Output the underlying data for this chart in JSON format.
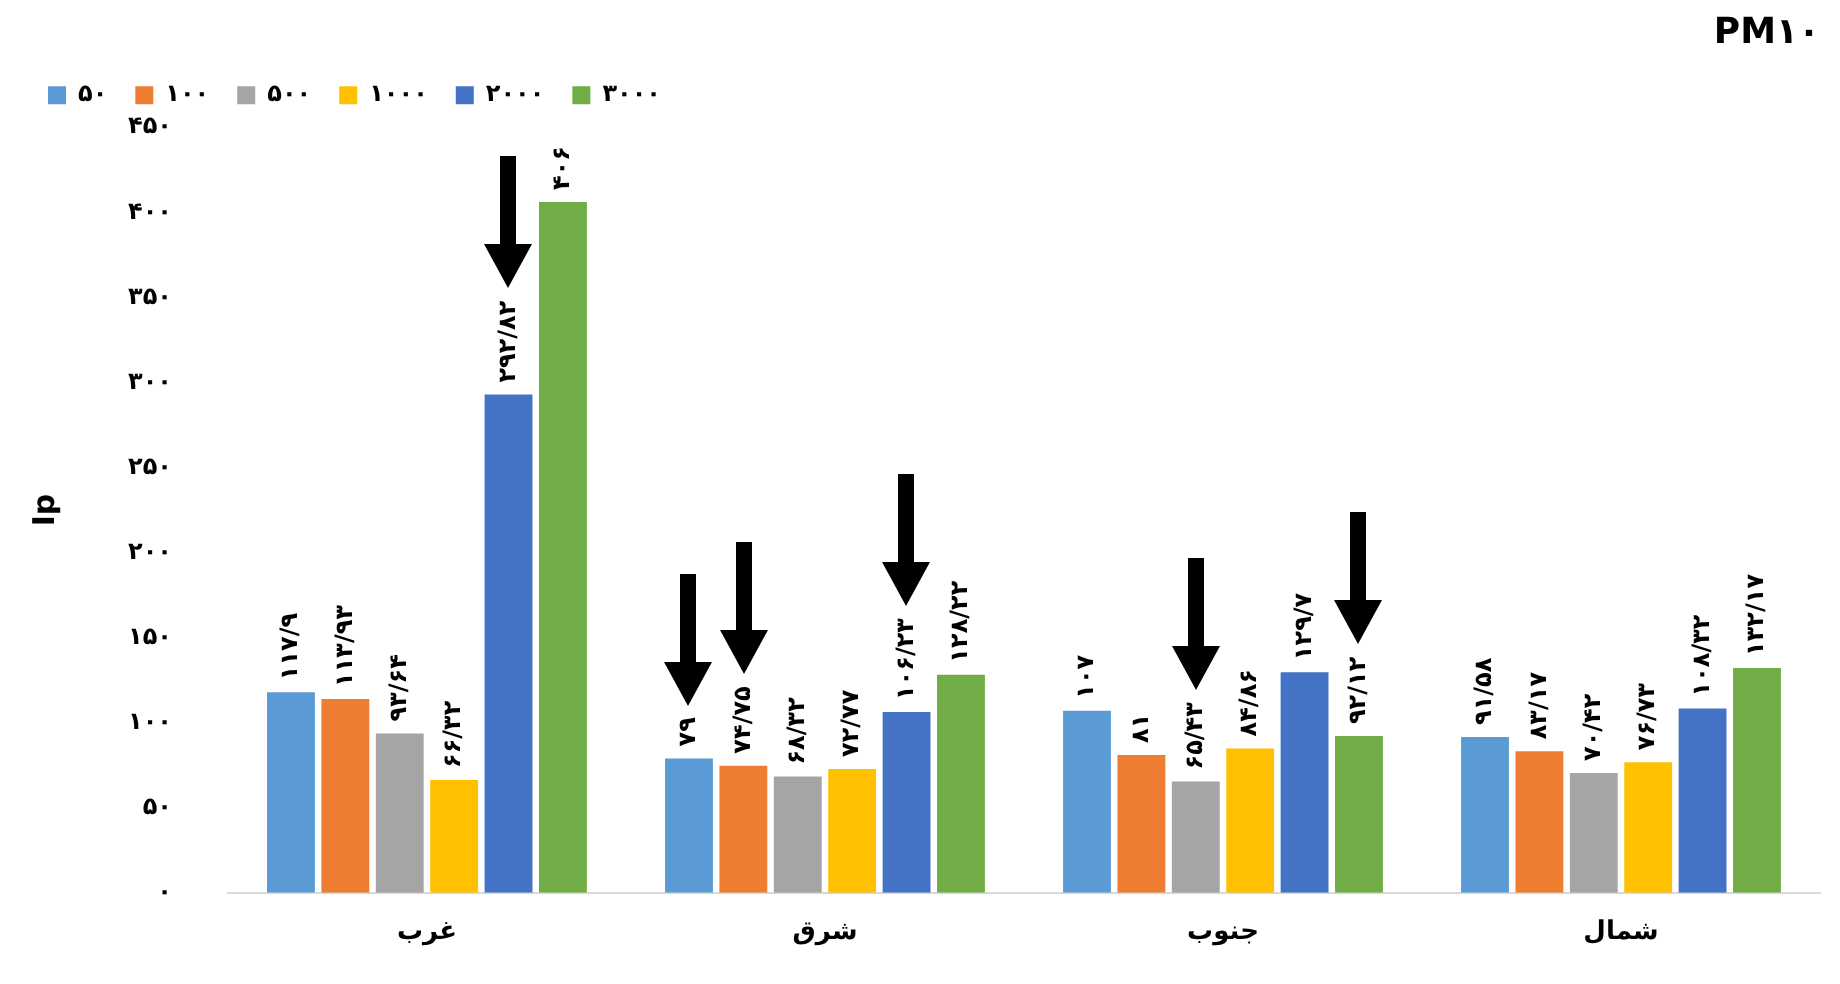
{
  "chart_data": {
    "type": "bar",
    "title": "PM۱۰",
    "ylabel": "Ip",
    "categories": [
      "غرب",
      "شرق",
      "جنوب",
      "شمال"
    ],
    "series": [
      {
        "name": "۵۰",
        "color": "#5b9bd5",
        "values": [
          117.9,
          79,
          107,
          91.58
        ],
        "value_labels": [
          "۱۱۷/۹",
          "۷۹",
          "۱۰۷",
          "۹۱/۵۸"
        ]
      },
      {
        "name": "۱۰۰",
        "color": "#ed7d31",
        "values": [
          113.93,
          74.75,
          81,
          83.17
        ],
        "value_labels": [
          "۱۱۳/۹۳",
          "۷۴/۷۵",
          "۸۱",
          "۸۳/۱۷"
        ]
      },
      {
        "name": "۵۰۰",
        "color": "#a5a5a5",
        "values": [
          93.64,
          68.32,
          65.43,
          70.42
        ],
        "value_labels": [
          "۹۳/۶۴",
          "۶۸/۳۲",
          "۶۵/۴۳",
          "۷۰/۴۲"
        ]
      },
      {
        "name": "۱۰۰۰",
        "color": "#ffc000",
        "values": [
          66.32,
          72.77,
          84.86,
          76.73
        ],
        "value_labels": [
          "۶۶/۳۲",
          "۷۲/۷۷",
          "۸۴/۸۶",
          "۷۶/۷۳"
        ]
      },
      {
        "name": "۲۰۰۰",
        "color": "#4472c4",
        "values": [
          292.82,
          106.23,
          129.7,
          108.32
        ],
        "value_labels": [
          "۲۹۲/۸۲",
          "۱۰۶/۲۳",
          "۱۲۹/۷",
          "۱۰۸/۳۲"
        ]
      },
      {
        "name": "۳۰۰۰",
        "color": "#70ad47",
        "values": [
          406,
          128.22,
          92.12,
          132.17
        ],
        "value_labels": [
          "۴۰۶",
          "۱۲۸/۲۲",
          "۹۲/۱۲",
          "۱۳۲/۱۷"
        ]
      }
    ],
    "ylim": [
      0,
      450
    ],
    "yticks": [
      {
        "value": 0,
        "label": "۰"
      },
      {
        "value": 50,
        "label": "۵۰"
      },
      {
        "value": 100,
        "label": "۱۰۰"
      },
      {
        "value": 150,
        "label": "۱۵۰"
      },
      {
        "value": 200,
        "label": "۲۰۰"
      },
      {
        "value": 250,
        "label": "۲۵۰"
      },
      {
        "value": 300,
        "label": "۳۰۰"
      },
      {
        "value": 350,
        "label": "۳۵۰"
      },
      {
        "value": 400,
        "label": "۴۰۰"
      },
      {
        "value": 450,
        "label": "۴۵۰"
      }
    ],
    "grid": false,
    "legend": "top left"
  }
}
